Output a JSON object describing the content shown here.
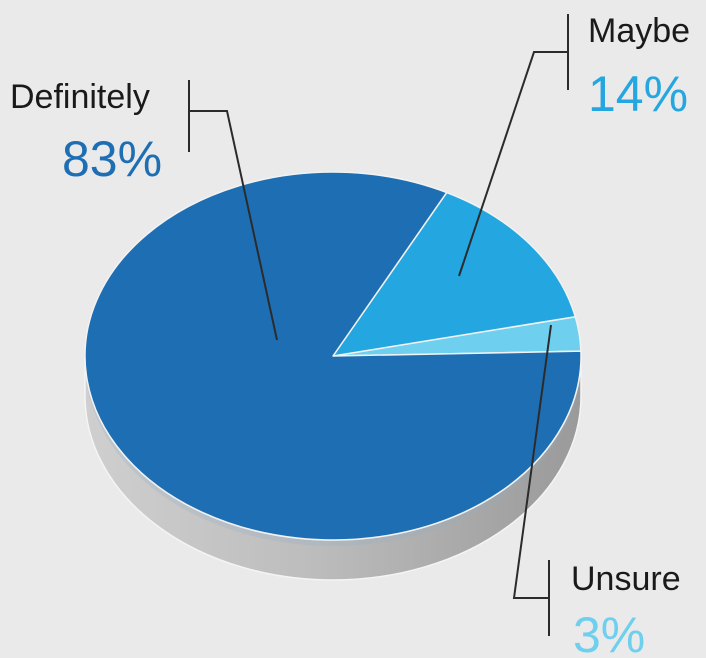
{
  "chart_data": {
    "type": "pie",
    "style": "3d",
    "slices": [
      {
        "label": "Definitely",
        "value": 83,
        "display": "83%",
        "color": "#1e6eb4"
      },
      {
        "label": "Maybe",
        "value": 14,
        "display": "14%",
        "color": "#24a6e0"
      },
      {
        "label": "Unsure",
        "value": 3,
        "display": "3%",
        "color": "#6fcfee"
      }
    ],
    "title": "",
    "background": "#eaeaea",
    "side_color": "#b4b4b4",
    "leader_color": "#2b2b2b"
  }
}
